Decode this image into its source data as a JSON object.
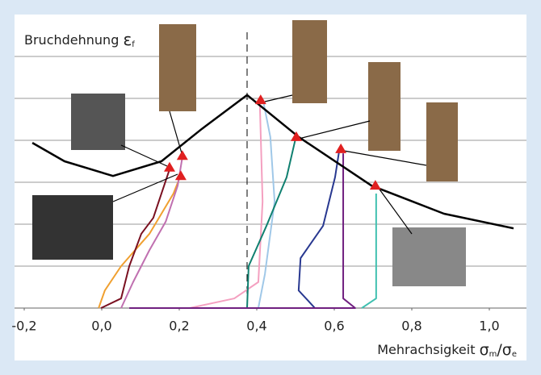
{
  "chart_data": {
    "type": "line",
    "y_label": {
      "text": "Bruchdehnung",
      "symbol": "ε",
      "sub": "f"
    },
    "x_label": {
      "text": "Mehrachsigkeit",
      "symbol": "σ",
      "sub": "m",
      "symbol2": "/σ",
      "sub2": "e"
    },
    "xlim": [
      -0.25,
      1.1
    ],
    "ylim": [
      0,
      6.5
    ],
    "xticks": [
      {
        "value": -0.2,
        "label": "-0,2"
      },
      {
        "value": 0.0,
        "label": "0,0"
      },
      {
        "value": 0.2,
        "label": "0,2"
      },
      {
        "value": 0.4,
        "label": "0,4"
      },
      {
        "value": 0.6,
        "label": "0,6"
      },
      {
        "value": 0.8,
        "label": "0,8"
      },
      {
        "value": 1.0,
        "label": "1,0"
      }
    ],
    "yticks": [
      0,
      1,
      2,
      3,
      4,
      5,
      6
    ],
    "grid": true,
    "vline": 0.375,
    "locus": {
      "color": "#000000",
      "x": [
        -0.179,
        -0.096,
        0.029,
        0.154,
        0.258,
        0.375,
        0.508,
        0.696,
        0.883,
        1.0625
      ],
      "values": [
        3.94,
        3.5,
        3.15,
        3.5,
        4.27,
        5.08,
        4.08,
        2.92,
        2.25,
        1.9
      ]
    },
    "series": [
      {
        "color": "#f0a030",
        "x": [
          -0.008,
          0.008,
          0.05,
          0.123,
          0.185,
          0.2
        ],
        "values": [
          0,
          0.42,
          1.0,
          1.77,
          2.73,
          3.08
        ]
      },
      {
        "color": "#7a1020",
        "x": [
          -0.002,
          0.05,
          0.071,
          0.102,
          0.133,
          0.154,
          0.175
        ],
        "values": [
          0,
          0.23,
          1.0,
          1.77,
          2.15,
          2.73,
          3.31
        ]
      },
      {
        "color": "#c070b0",
        "x": [
          0.05,
          0.081,
          0.123,
          0.165,
          0.196,
          0.208
        ],
        "values": [
          0,
          0.62,
          1.38,
          2.06,
          2.92,
          3.6
        ]
      },
      {
        "color": "#f4a0c0",
        "x": [
          0.227,
          0.342,
          0.404,
          0.415,
          0.408
        ],
        "values": [
          0,
          0.23,
          0.62,
          2.54,
          4.85
        ]
      },
      {
        "color": "#a0c8e8",
        "x": [
          0.404,
          0.421,
          0.446,
          0.435,
          0.417
        ],
        "values": [
          0,
          0.81,
          2.54,
          4.08,
          4.92
        ]
      },
      {
        "color": "#108070",
        "x": [
          0.375,
          0.379,
          0.425,
          0.477,
          0.5
        ],
        "values": [
          0,
          1.0,
          1.96,
          3.12,
          4.04
        ]
      },
      {
        "color": "#283890",
        "x": [
          0.55,
          0.508,
          0.513,
          0.571,
          0.602,
          0.613
        ],
        "values": [
          0,
          0.42,
          1.19,
          1.96,
          3.12,
          3.77
        ]
      },
      {
        "color": "#702080",
        "x": [
          0.071,
          0.654,
          0.623,
          0.623
        ],
        "values": [
          0,
          0,
          0.23,
          3.69
        ]
      },
      {
        "color": "#40c0b0",
        "x": [
          0.671,
          0.708,
          0.708
        ],
        "values": [
          0,
          0.23,
          2.73
        ]
      }
    ],
    "markers": {
      "color": "#e02020",
      "x": [
        0.175,
        0.208,
        0.204,
        0.41,
        0.502,
        0.617,
        0.706
      ],
      "values": [
        3.35,
        3.63,
        3.15,
        4.96,
        4.08,
        3.79,
        2.92
      ]
    }
  }
}
